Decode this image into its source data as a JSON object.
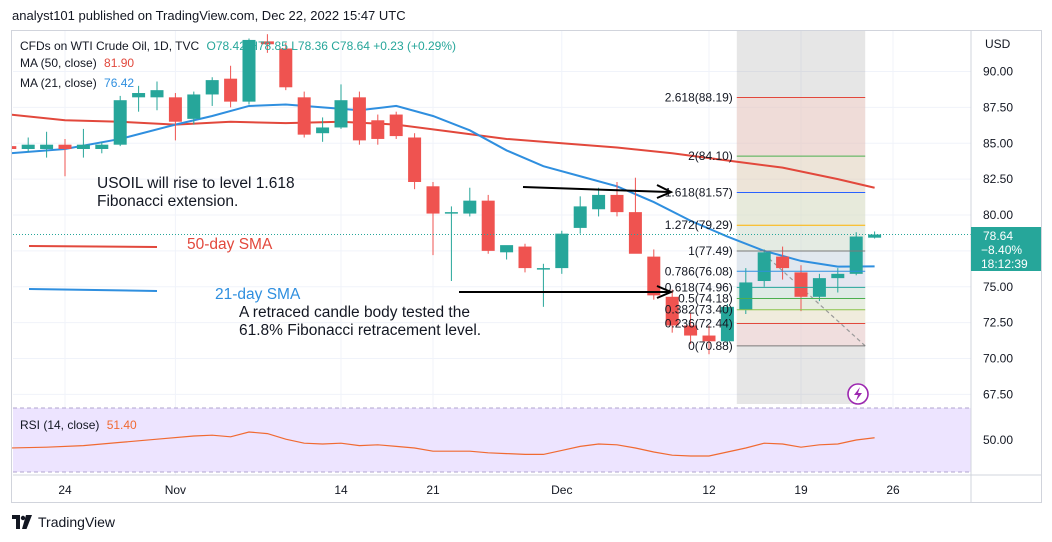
{
  "header": {
    "publisher_line": "analyst101 published on TradingView.com, Dec 22, 2022 15:47 UTC"
  },
  "legend": {
    "symbol": "CFDs on WTI Crude Oil, 1D, TVC",
    "ohlc": "O78.42 H78.85 L78.36 C78.64 +0.23 (+0.29%)",
    "ma50_label": "MA (50, close)",
    "ma50_value": "81.90",
    "ma21_label": "MA (21, close)",
    "ma21_value": "76.42",
    "rsi_label": "RSI (14, close)",
    "rsi_value": "51.40"
  },
  "price_box": {
    "price": "78.64",
    "change": "−8.40%",
    "countdown": "18:12:39"
  },
  "annotations": {
    "rise_text": [
      "USOIL  will rise to level 1.618",
      "Fibonacci extension."
    ],
    "sma50_text": "50-day SMA",
    "sma21_text": "21-day SMA",
    "retrace_text": [
      "A retraced candle body tested the",
      "61.8% Fibonacci retracement level."
    ]
  },
  "footer": {
    "brand": "TradingView"
  },
  "colors": {
    "up": "#26a69a",
    "down": "#ef5350",
    "ma50": "#e2483c",
    "ma21": "#2f8fdf",
    "rsi_line": "#f06a32",
    "rsi_band": "#ede4ff",
    "fib_zone": "#8c8c8c",
    "accent": "#9c27b0"
  },
  "chart_data": {
    "type": "candlestick",
    "title": "CFDs on WTI Crude Oil, 1D, TVC",
    "currency_label": "USD",
    "ylim": [
      66.0,
      93.0
    ],
    "y_ticks": [
      "90.00",
      "87.50",
      "85.00",
      "82.50",
      "80.00",
      "77.50",
      "75.00",
      "72.50",
      "70.00",
      "67.50"
    ],
    "x_ticks": [
      "24",
      "Nov",
      "14",
      "21",
      "Dec",
      "12",
      "19",
      "26"
    ],
    "x_tick_days": [
      0,
      6,
      15,
      20,
      27,
      35,
      40,
      45
    ],
    "candles": [
      {
        "d": -3,
        "o": 84.8,
        "h": 86.3,
        "l": 84.2,
        "c": 84.6
      },
      {
        "d": -2,
        "o": 84.6,
        "h": 85.4,
        "l": 84.4,
        "c": 84.9
      },
      {
        "d": -1,
        "o": 84.6,
        "h": 85.8,
        "l": 84.0,
        "c": 84.9
      },
      {
        "d": 0,
        "o": 84.9,
        "h": 85.3,
        "l": 82.7,
        "c": 84.6
      },
      {
        "d": 1,
        "o": 84.6,
        "h": 86.0,
        "l": 84.0,
        "c": 84.9
      },
      {
        "d": 2,
        "o": 84.6,
        "h": 85.1,
        "l": 84.3,
        "c": 84.9
      },
      {
        "d": 3,
        "o": 84.9,
        "h": 88.3,
        "l": 84.8,
        "c": 88.0
      },
      {
        "d": 4,
        "o": 88.2,
        "h": 89.0,
        "l": 87.2,
        "c": 88.5
      },
      {
        "d": 5,
        "o": 88.2,
        "h": 89.3,
        "l": 87.3,
        "c": 88.7
      },
      {
        "d": 6,
        "o": 88.2,
        "h": 88.5,
        "l": 85.2,
        "c": 86.5
      },
      {
        "d": 7,
        "o": 86.7,
        "h": 88.6,
        "l": 86.3,
        "c": 88.4
      },
      {
        "d": 8,
        "o": 88.4,
        "h": 89.6,
        "l": 87.6,
        "c": 89.4
      },
      {
        "d": 9,
        "o": 89.5,
        "h": 90.4,
        "l": 87.5,
        "c": 87.9
      },
      {
        "d": 10,
        "o": 87.9,
        "h": 92.3,
        "l": 87.7,
        "c": 92.2
      },
      {
        "d": 11,
        "o": 92.1,
        "h": 92.6,
        "l": 91.3,
        "c": 91.9
      },
      {
        "d": 12,
        "o": 91.6,
        "h": 92.0,
        "l": 88.7,
        "c": 88.9
      },
      {
        "d": 13,
        "o": 88.2,
        "h": 88.6,
        "l": 85.4,
        "c": 85.6
      },
      {
        "d": 14,
        "o": 85.7,
        "h": 86.8,
        "l": 85.1,
        "c": 86.1
      },
      {
        "d": 15,
        "o": 86.1,
        "h": 89.1,
        "l": 86.0,
        "c": 88.0
      },
      {
        "d": 16,
        "o": 88.2,
        "h": 88.6,
        "l": 84.9,
        "c": 85.2
      },
      {
        "d": 17,
        "o": 86.6,
        "h": 87.0,
        "l": 84.9,
        "c": 85.3
      },
      {
        "d": 18,
        "o": 87.0,
        "h": 87.2,
        "l": 85.3,
        "c": 85.5
      },
      {
        "d": 19,
        "o": 85.4,
        "h": 85.7,
        "l": 81.8,
        "c": 82.3
      },
      {
        "d": 20,
        "o": 82.0,
        "h": 82.3,
        "l": 77.2,
        "c": 80.1
      },
      {
        "d": 21,
        "o": 80.2,
        "h": 80.6,
        "l": 75.4,
        "c": 80.2
      },
      {
        "d": 22,
        "o": 80.1,
        "h": 81.9,
        "l": 79.9,
        "c": 81.0
      },
      {
        "d": 23,
        "o": 81.0,
        "h": 81.4,
        "l": 77.3,
        "c": 77.5
      },
      {
        "d": 24,
        "o": 77.4,
        "h": 77.7,
        "l": 76.9,
        "c": 77.9
      },
      {
        "d": 25,
        "o": 77.8,
        "h": 78.0,
        "l": 76.0,
        "c": 76.3
      },
      {
        "d": 26,
        "o": 76.2,
        "h": 76.6,
        "l": 73.6,
        "c": 76.3
      },
      {
        "d": 27,
        "o": 76.3,
        "h": 78.9,
        "l": 75.9,
        "c": 78.7
      },
      {
        "d": 28,
        "o": 79.1,
        "h": 81.3,
        "l": 78.7,
        "c": 80.6
      },
      {
        "d": 29,
        "o": 80.4,
        "h": 81.9,
        "l": 79.9,
        "c": 81.4
      },
      {
        "d": 30,
        "o": 81.4,
        "h": 82.3,
        "l": 79.9,
        "c": 80.2
      },
      {
        "d": 31,
        "o": 80.2,
        "h": 82.6,
        "l": 77.4,
        "c": 77.3
      },
      {
        "d": 32,
        "o": 77.1,
        "h": 77.6,
        "l": 74.1,
        "c": 74.4
      },
      {
        "d": 33,
        "o": 74.3,
        "h": 74.8,
        "l": 71.8,
        "c": 72.3
      },
      {
        "d": 34,
        "o": 72.3,
        "h": 73.2,
        "l": 71.0,
        "c": 71.6
      },
      {
        "d": 35,
        "o": 71.6,
        "h": 72.3,
        "l": 70.3,
        "c": 71.2
      },
      {
        "d": 36,
        "o": 71.2,
        "h": 73.8,
        "l": 70.9,
        "c": 73.6
      },
      {
        "d": 37,
        "o": 73.4,
        "h": 76.3,
        "l": 73.1,
        "c": 75.3
      },
      {
        "d": 38,
        "o": 75.4,
        "h": 77.6,
        "l": 75.0,
        "c": 77.4
      },
      {
        "d": 39,
        "o": 77.1,
        "h": 77.8,
        "l": 75.5,
        "c": 76.3
      },
      {
        "d": 40,
        "o": 76.0,
        "h": 76.5,
        "l": 73.3,
        "c": 74.3
      },
      {
        "d": 41,
        "o": 74.3,
        "h": 75.9,
        "l": 74.0,
        "c": 75.6
      },
      {
        "d": 42,
        "o": 75.6,
        "h": 76.3,
        "l": 74.6,
        "c": 75.9
      },
      {
        "d": 43,
        "o": 75.9,
        "h": 78.8,
        "l": 75.8,
        "c": 78.5
      },
      {
        "d": 44,
        "o": 78.42,
        "h": 78.85,
        "l": 78.36,
        "c": 78.64
      }
    ],
    "series": [
      {
        "name": "MA (50, close)",
        "points": [
          [
            -3,
            87.0
          ],
          [
            0,
            86.6
          ],
          [
            3,
            86.5
          ],
          [
            6,
            86.3
          ],
          [
            9,
            86.5
          ],
          [
            12,
            86.4
          ],
          [
            15,
            86.5
          ],
          [
            18,
            86.3
          ],
          [
            21,
            85.8
          ],
          [
            24,
            85.3
          ],
          [
            27,
            85.0
          ],
          [
            30,
            84.7
          ],
          [
            33,
            84.3
          ],
          [
            36,
            83.8
          ],
          [
            39,
            83.3
          ],
          [
            42,
            82.5
          ],
          [
            44,
            81.9
          ]
        ]
      },
      {
        "name": "MA (21, close)",
        "points": [
          [
            -3,
            84.3
          ],
          [
            0,
            84.6
          ],
          [
            3,
            85.3
          ],
          [
            6,
            86.3
          ],
          [
            8,
            86.9
          ],
          [
            10,
            87.6
          ],
          [
            12,
            87.7
          ],
          [
            14,
            87.5
          ],
          [
            16,
            87.3
          ],
          [
            18,
            87.6
          ],
          [
            20,
            86.9
          ],
          [
            22,
            85.9
          ],
          [
            24,
            84.5
          ],
          [
            26,
            83.4
          ],
          [
            28,
            82.7
          ],
          [
            30,
            82.0
          ],
          [
            32,
            80.9
          ],
          [
            34,
            79.6
          ],
          [
            36,
            78.5
          ],
          [
            38,
            77.5
          ],
          [
            40,
            76.8
          ],
          [
            42,
            76.4
          ],
          [
            44,
            76.42
          ]
        ]
      }
    ],
    "rsi": {
      "name": "RSI (14, close)",
      "ylim": [
        35,
        70
      ],
      "tick_label": "50.00",
      "points": [
        [
          -3,
          45.0
        ],
        [
          -1,
          45.5
        ],
        [
          1,
          46.5
        ],
        [
          3,
          48.5
        ],
        [
          5,
          50.5
        ],
        [
          7,
          52.5
        ],
        [
          8,
          53.0
        ],
        [
          9,
          52.0
        ],
        [
          10,
          55.0
        ],
        [
          11,
          54.0
        ],
        [
          12,
          50.5
        ],
        [
          13,
          48.0
        ],
        [
          14,
          47.5
        ],
        [
          15,
          48.0
        ],
        [
          16,
          46.5
        ],
        [
          17,
          47.0
        ],
        [
          18,
          46.0
        ],
        [
          19,
          45.0
        ],
        [
          20,
          43.0
        ],
        [
          21,
          43.0
        ],
        [
          22,
          43.0
        ],
        [
          23,
          42.0
        ],
        [
          24,
          41.5
        ],
        [
          25,
          41.0
        ],
        [
          26,
          41.0
        ],
        [
          27,
          43.5
        ],
        [
          28,
          46.0
        ],
        [
          29,
          47.5
        ],
        [
          30,
          47.0
        ],
        [
          31,
          45.0
        ],
        [
          32,
          42.5
        ],
        [
          33,
          40.5
        ],
        [
          34,
          40.0
        ],
        [
          35,
          40.0
        ],
        [
          36,
          42.5
        ],
        [
          37,
          45.0
        ],
        [
          38,
          48.0
        ],
        [
          39,
          47.5
        ],
        [
          40,
          45.5
        ],
        [
          41,
          47.0
        ],
        [
          42,
          47.5
        ],
        [
          43,
          50.0
        ],
        [
          44,
          51.4
        ]
      ]
    },
    "fibonacci": {
      "start_day": 37,
      "end_day": 43,
      "levels": [
        {
          "label": "2.618(88.19)",
          "price": 88.19
        },
        {
          "label": "2(84.10)",
          "price": 84.1
        },
        {
          "label": "1.618(81.57)",
          "price": 81.57
        },
        {
          "label": "1.272(79.29)",
          "price": 79.29
        },
        {
          "label": "1(77.49)",
          "price": 77.49
        },
        {
          "label": "0.786(76.08)",
          "price": 76.08
        },
        {
          "label": "0.618(74.96)",
          "price": 74.96
        },
        {
          "label": "0.5(74.18)",
          "price": 74.18
        },
        {
          "label": "0.382(73.40)",
          "price": 73.4
        },
        {
          "label": "0.236(72.44)",
          "price": 72.44
        },
        {
          "label": "0(70.88)",
          "price": 70.88
        }
      ]
    }
  }
}
